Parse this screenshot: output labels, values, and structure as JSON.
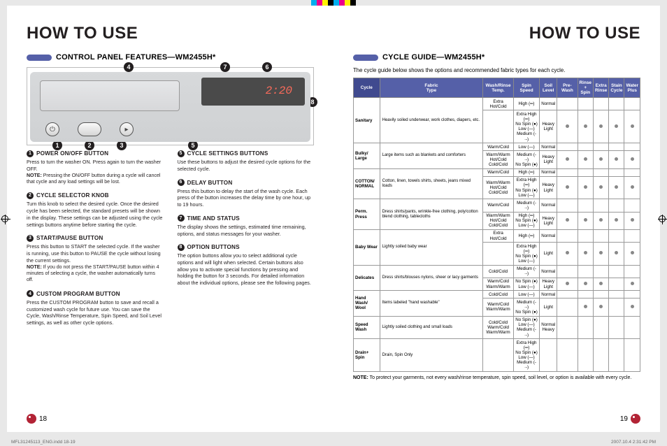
{
  "header": "HOW TO USE",
  "left": {
    "section_title": "CONTROL PANEL FEATURES—WM2455H*",
    "display_readout": "2:20",
    "callouts_top": [
      "4",
      "7",
      "6"
    ],
    "callouts_right": [
      "8"
    ],
    "callouts_bottom": [
      "1",
      "2",
      "3",
      "5"
    ],
    "items": [
      {
        "n": "1",
        "h": "POWER ON/OFF BUTTON",
        "b": "Press to turn the washer ON. Press again to turn the washer OFF.",
        "note": "NOTE: Pressing the ON/OFF button during a cycle will cancel that cycle and any load settings will be lost."
      },
      {
        "n": "2",
        "h": "CYCLE SELECTOR KNOB",
        "b": "Turn this knob to select the desired cycle. Once the desired cycle has been selected, the standard presets will be shown in the display. These settings can be adjusted using the cycle settings buttons anytime before starting the cycle."
      },
      {
        "n": "3",
        "h": "START/PAUSE BUTTON",
        "b": "Press this button to START the selected cycle. If the washer is running, use this button to PAUSE the cycle without losing the current settings.",
        "note": "NOTE: If you do not press the START/PAUSE button within 4 minutes of selecting a cycle, the washer automatically turns off."
      },
      {
        "n": "4",
        "h": "CUSTOM PROGRAM BUTTON",
        "b": "Press the CUSTOM PROGRAM button to save and recall a customized wash cycle for future use. You can save the Cycle, Wash/Rinse Temperature, Spin Speed, and Soil Level settings, as well as other cycle options."
      },
      {
        "n": "5",
        "h": "CYCLE SETTINGS BUTTONS",
        "b": "Use these buttons to adjust the desired cycle options for the selected cycle."
      },
      {
        "n": "6",
        "h": "DELAY BUTTON",
        "b": "Press this button to delay the start of the wash cycle. Each press of the button increases the delay time by one hour, up to 19 hours."
      },
      {
        "n": "7",
        "h": "TIME AND STATUS",
        "b": "The display shows the settings, estimated time remaining, options, and status messages for your washer."
      },
      {
        "n": "8",
        "h": "OPTION BUTTONS",
        "b": "The option buttons allow you to select additional cycle options and will light when selected. Certain buttons also allow you to activate special functions by pressing and holding the button for 3 seconds. For detailed information about the individual options, please see the following pages."
      }
    ],
    "page": "18"
  },
  "right": {
    "section_title": "CYCLE GUIDE—WM2455H*",
    "intro": "The cycle guide below shows the options and recommended fabric types for each cycle.",
    "head": [
      "Cycle",
      "Fabric Type",
      "Wash/Rinse Temp.",
      "Spin Speed",
      "Soil Level",
      "Pre-Wash",
      "Rinse + Spin",
      "Extra Rinse",
      "Stain Cycle",
      "Water Plus"
    ],
    "rows": [
      {
        "cycle": "Sanitary",
        "fabric": "Heavily soiled underwear, work clothes, diapers, etc.",
        "r": [
          [
            "Extra Hot/Cold",
            "High (═)",
            "Normal",
            "",
            "",
            "",
            "",
            ""
          ],
          [
            "",
            "Extra High (═)\nNo Spin (●)\nLow (—)\nMedium (-·-)",
            "Heavy\nLight",
            "●",
            "●",
            "●",
            "●",
            "●"
          ]
        ]
      },
      {
        "cycle": "Bulky/\nLarge",
        "fabric": "Large items such as blankets and comforters",
        "r": [
          [
            "Warm/Cold",
            "Low (—)",
            "Normal",
            "",
            "",
            "",
            "",
            ""
          ],
          [
            "Warm/Warm\nHot/Cold\nCold/Cold",
            "Medium (-·-)\nNo Spin (●)",
            "Heavy\nLight",
            "●",
            "●",
            "●",
            "●",
            "●"
          ]
        ]
      },
      {
        "cycle": "COTTON/\nNORMAL",
        "fabric": "Cotton, linen, towels shirts, sheets, jeans mixed loads",
        "r": [
          [
            "Warm/Cold",
            "High (═)",
            "Normal",
            "",
            "",
            "",
            "",
            ""
          ],
          [
            "Warm/Warm\nHot/Cold\nCold/Cold",
            "Extra High (═)\nNo Spin (●)\nLow (—)",
            "Heavy\nLight",
            "●",
            "●",
            "●",
            "●",
            "●"
          ]
        ]
      },
      {
        "cycle": "Perm. Press",
        "fabric": "Dress shirts/pants, wrinkle-free clothing, poly/cotton blend clothing, tablecloths",
        "r": [
          [
            "Warm/Cold",
            "Medium (-·-)",
            "Normal",
            "",
            "",
            "",
            "",
            ""
          ],
          [
            "Warm/Warm\nHot/Cold\nCold/Cold",
            "High (═)\nNo Spin (●)\nLow (—)",
            "Heavy\nLight",
            "●",
            "●",
            "●",
            "●",
            "●"
          ]
        ]
      },
      {
        "cycle": "Baby Wear",
        "fabric": "Lightly soiled baby wear",
        "r": [
          [
            "Extra Hot/Cold",
            "High (═)",
            "Normal",
            "",
            "",
            "",
            "",
            ""
          ],
          [
            "",
            "Extra High (═)\nNo Spin (●)\nLow (—)",
            "Light",
            "●",
            "●",
            "●",
            "●",
            "●"
          ]
        ]
      },
      {
        "cycle": "Delicates",
        "fabric": "Dress shirts/blouses nylons, sheer or lacy garments",
        "r": [
          [
            "Cold/Cold",
            "Medium (-·-)",
            "Normal",
            "",
            "",
            "",
            "",
            ""
          ],
          [
            "Warm/Cold\nWarm/Warm",
            "No Spin (●)\nLow (—)",
            "Heavy\nLight",
            "●",
            "●",
            "●",
            "",
            "●"
          ]
        ]
      },
      {
        "cycle": "Hand Wash/\nWool",
        "fabric": "Items labeled \"hand washable\"",
        "r": [
          [
            "Cold/Cold",
            "Low (—)",
            "Normal",
            "",
            "",
            "",
            "",
            ""
          ],
          [
            "Warm/Cold\nWarm/Warm",
            "Medium (-·-)\nNo Spin (●)",
            "Light",
            "",
            "●",
            "●",
            "",
            "●"
          ]
        ]
      },
      {
        "cycle": "Speed\nWash",
        "fabric": "Lightly soiled clothing and small loads",
        "r": [
          [
            "Cold/Cold\nWarm/Cold\nWarm/Warm",
            "No Spin (●)\nLow (—)\nMedium (-·-)",
            "Normal\nHeavy",
            "",
            "",
            "",
            "",
            ""
          ]
        ]
      },
      {
        "cycle": "Drain+\nSpin",
        "fabric": "Drain, Spin Only",
        "r": [
          [
            "",
            "Extra High (═)\nNo Spin (●)\nLow (—)\nMedium (-·-)",
            "",
            "",
            "",
            "",
            "",
            ""
          ]
        ]
      }
    ],
    "footnote": "NOTE: To protect your garments, not every wash/rinse temperature, spin speed, soil level, or option is available with every cycle.",
    "page": "19"
  },
  "footer_left": "MFL31245113_ENG.indd   18-19",
  "footer_right": "2007.10.4   2:31:42 PM",
  "colorbar": [
    "#00aeef",
    "#ec008c",
    "#fff200",
    "#000000",
    "#00aeef",
    "#ec008c",
    "#fff200",
    "#000000"
  ]
}
